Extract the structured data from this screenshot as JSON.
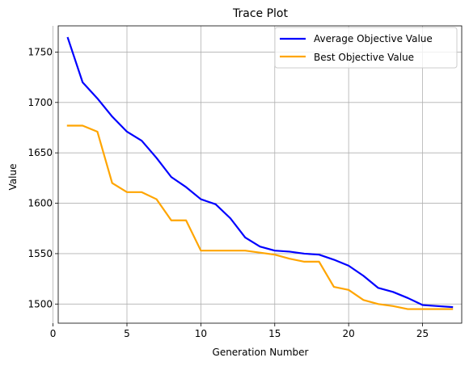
{
  "chart_data": {
    "type": "line",
    "title": "Trace Plot",
    "xlabel": "Generation Number",
    "ylabel": "Value",
    "xlim": [
      0.35,
      27.65
    ],
    "ylim": [
      1481,
      1776
    ],
    "xticks": [
      0,
      5,
      10,
      15,
      20,
      25
    ],
    "yticks": [
      1500,
      1550,
      1600,
      1650,
      1700,
      1750
    ],
    "grid": true,
    "legend_position": "top-right",
    "x": [
      1,
      2,
      3,
      4,
      5,
      6,
      7,
      8,
      9,
      10,
      11,
      12,
      13,
      14,
      15,
      16,
      17,
      18,
      19,
      20,
      21,
      22,
      23,
      24,
      25,
      26,
      27
    ],
    "series": [
      {
        "name": "Average Objective Value",
        "color": "#0000ff",
        "values": [
          1764,
          1720,
          1704,
          1686,
          1671,
          1662,
          1645,
          1626,
          1616,
          1604,
          1599,
          1585,
          1566,
          1557,
          1553,
          1552,
          1550,
          1549,
          1544,
          1538,
          1528,
          1516,
          1512,
          1506,
          1499,
          1498,
          1497
        ]
      },
      {
        "name": "Best Objective Value",
        "color": "#ffa500",
        "values": [
          1677,
          1677,
          1671,
          1620,
          1611,
          1611,
          1604,
          1583,
          1583,
          1553,
          1553,
          1553,
          1553,
          1551,
          1549,
          1545,
          1542,
          1542,
          1517,
          1514,
          1504,
          1500,
          1498,
          1495,
          1495,
          1495,
          1495
        ]
      }
    ]
  }
}
